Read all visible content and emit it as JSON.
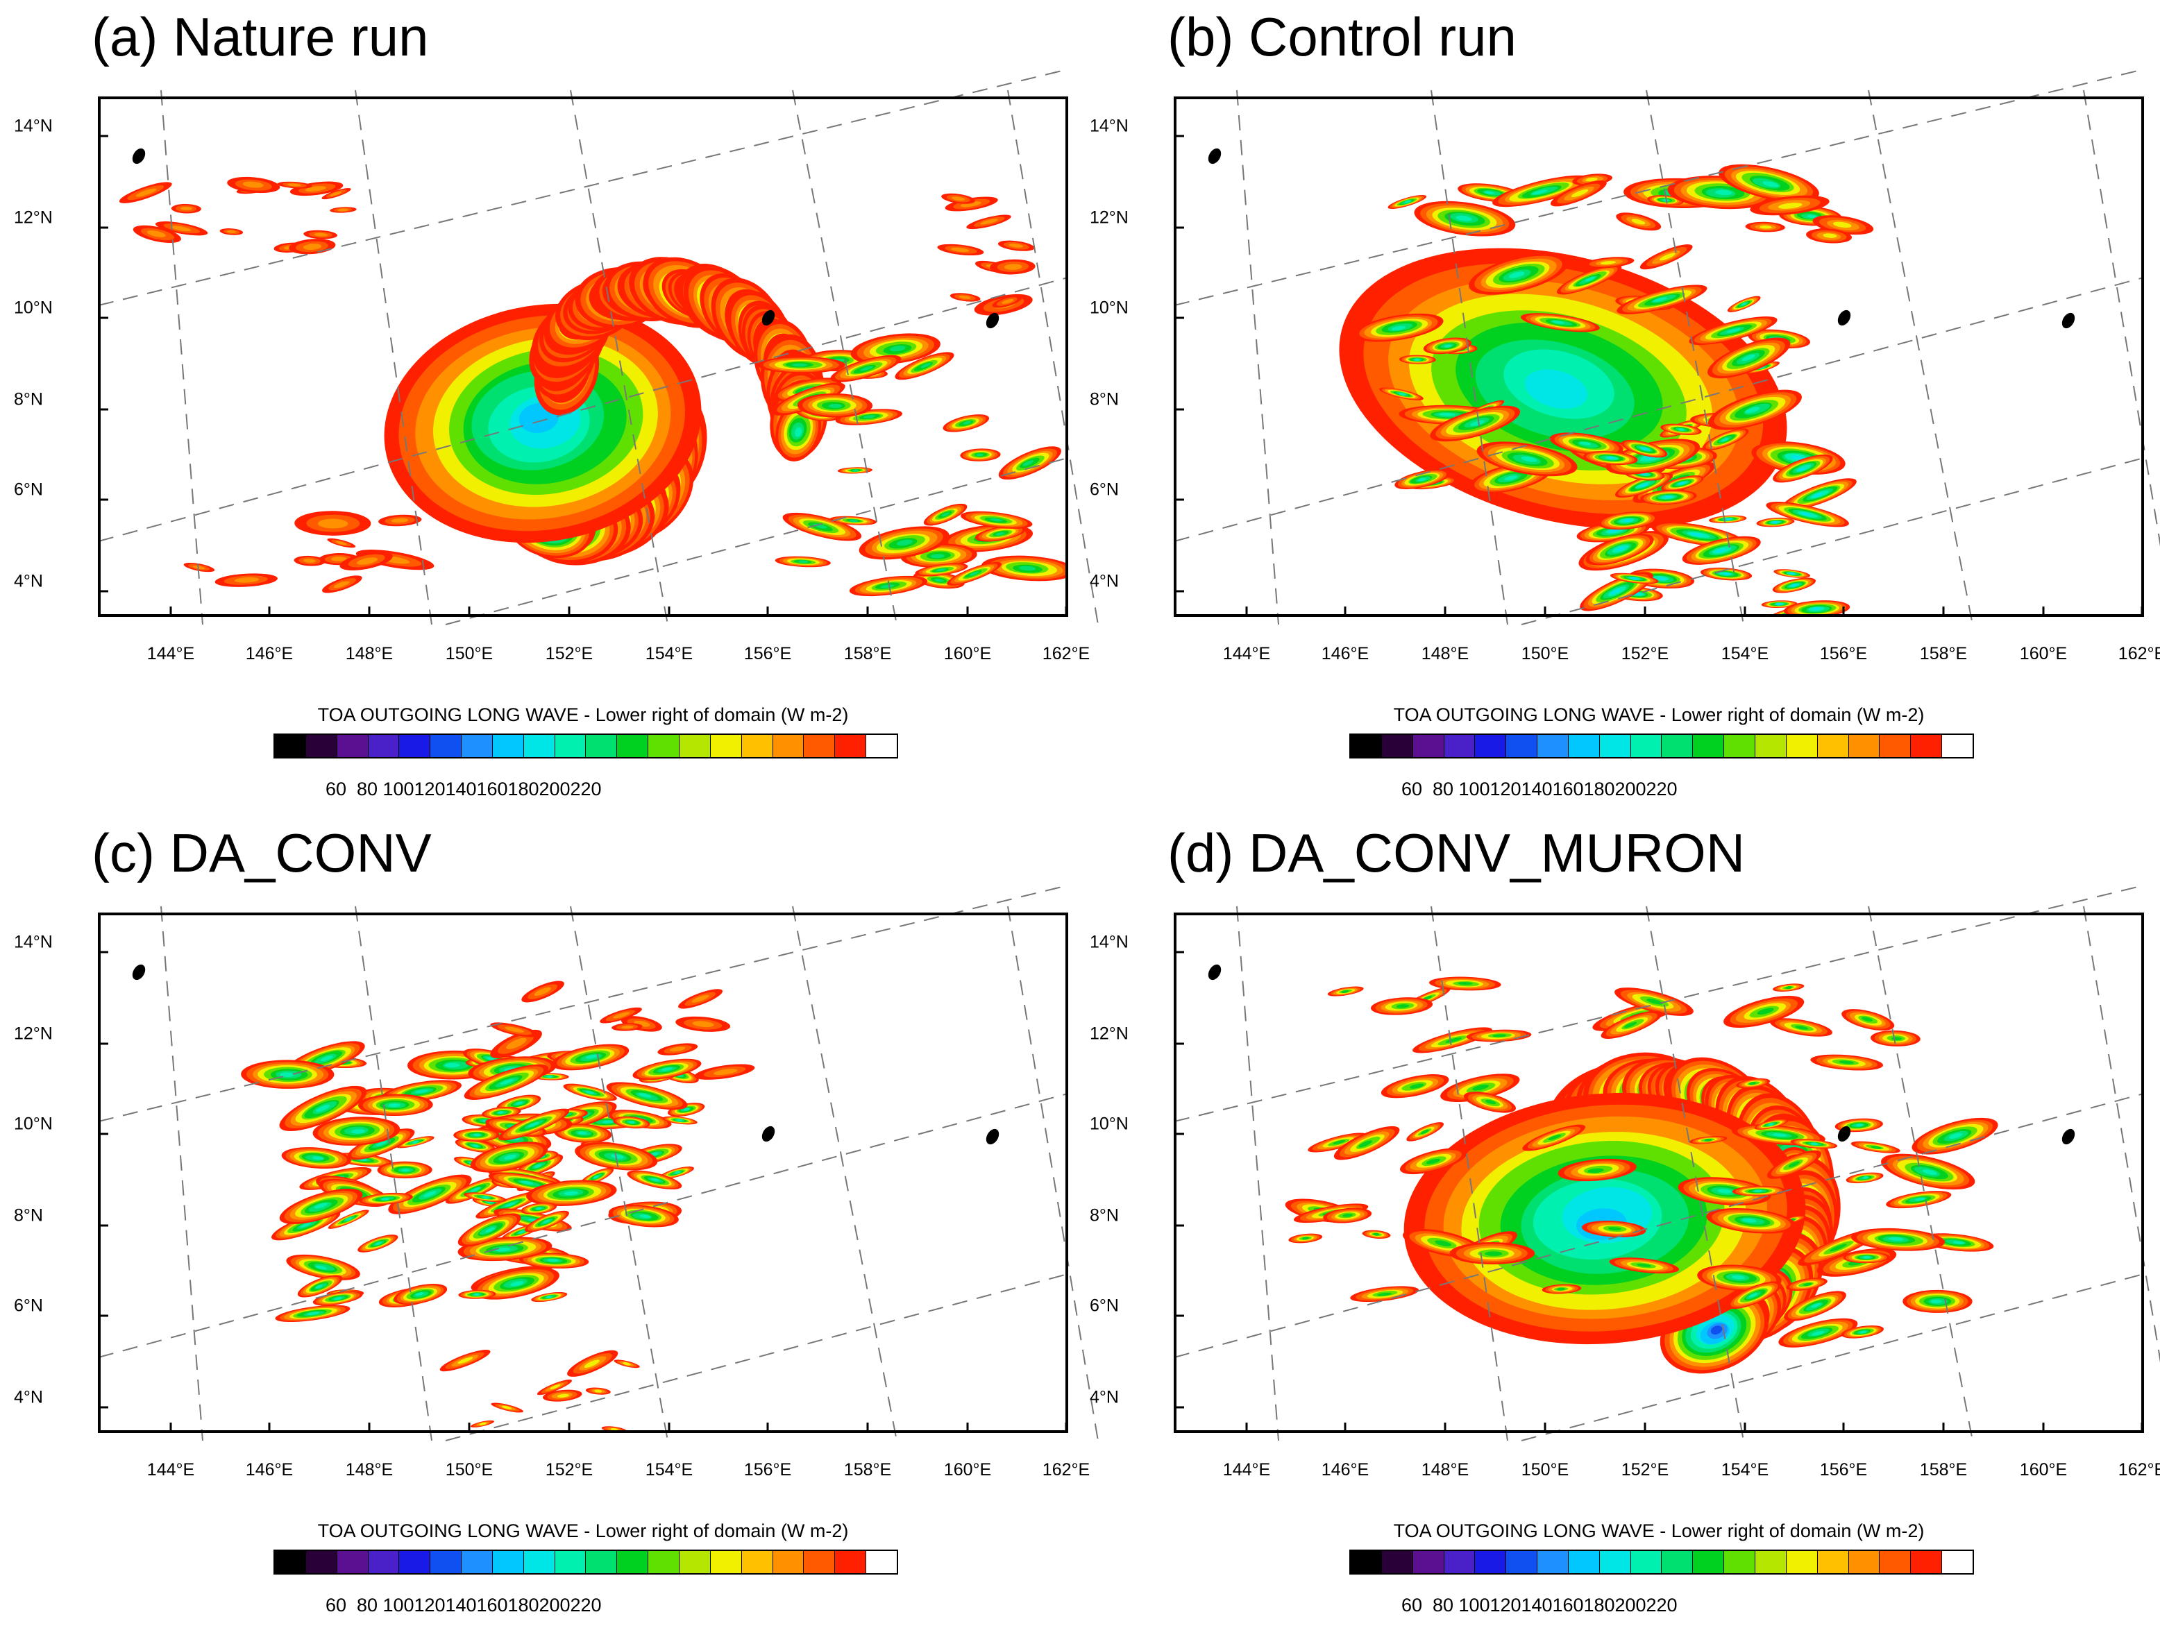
{
  "panels": [
    {
      "id": "a",
      "title": "(a) Nature run",
      "variant": "nature"
    },
    {
      "id": "b",
      "title": "(b) Control run",
      "variant": "control"
    },
    {
      "id": "c",
      "title": "(c) DA_CONV",
      "variant": "daconv"
    },
    {
      "id": "d",
      "title": "(d) DA_CONV_MURON",
      "variant": "muron"
    }
  ],
  "map": {
    "lat_labels": [
      "14°N",
      "12°N",
      "10°N",
      "8°N",
      "6°N",
      "4°N"
    ],
    "lon_labels": [
      "144°E",
      "146°E",
      "148°E",
      "150°E",
      "152°E",
      "154°E",
      "156°E",
      "158°E",
      "160°E",
      "162°E"
    ]
  },
  "colorbar": {
    "title": "TOA OUTGOING LONG WAVE - Lower right of domain  (W m-2)",
    "colors": [
      "#000000",
      "#2a0038",
      "#5a1090",
      "#4a20c8",
      "#1a1ae6",
      "#1050f0",
      "#1e90ff",
      "#00c8ff",
      "#00e6e6",
      "#00f0b0",
      "#00e070",
      "#00d020",
      "#60e000",
      "#b4e600",
      "#f0f000",
      "#ffc000",
      "#ff9000",
      "#ff5a00",
      "#ff2000",
      "#ffffff"
    ],
    "labels": [
      "60",
      "80",
      "100",
      "120",
      "140",
      "160",
      "180",
      "200",
      "220"
    ]
  }
}
